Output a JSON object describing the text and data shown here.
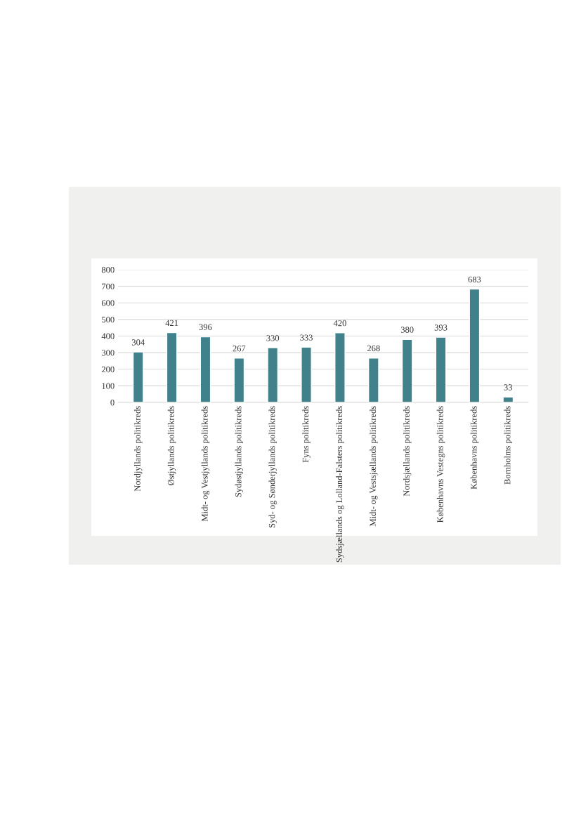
{
  "chart_data": {
    "type": "bar",
    "categories": [
      "Nordjyllands politikreds",
      "Østjyllands politikreds",
      "Midt- og Vestjyllands politikreds",
      "Sydøstjyllands politikreds",
      "Syd- og Sønderjyllands politikreds",
      "Fyns politikreds",
      "Sydsjællands og Lolland-Falsters politikreds",
      "Midt- og Vestsjællands politikreds",
      "Nordsjællands politikreds",
      "Københavns Vestegns politikreds",
      "Københavns politikreds",
      "Bornholms politikreds"
    ],
    "values": [
      304,
      421,
      396,
      267,
      330,
      333,
      420,
      268,
      380,
      393,
      683,
      33
    ],
    "color": "#41818c",
    "ylim": [
      0,
      800
    ],
    "yticks": [
      0,
      100,
      200,
      300,
      400,
      500,
      600,
      700,
      800
    ],
    "grid": "y",
    "data_labels": true
  }
}
